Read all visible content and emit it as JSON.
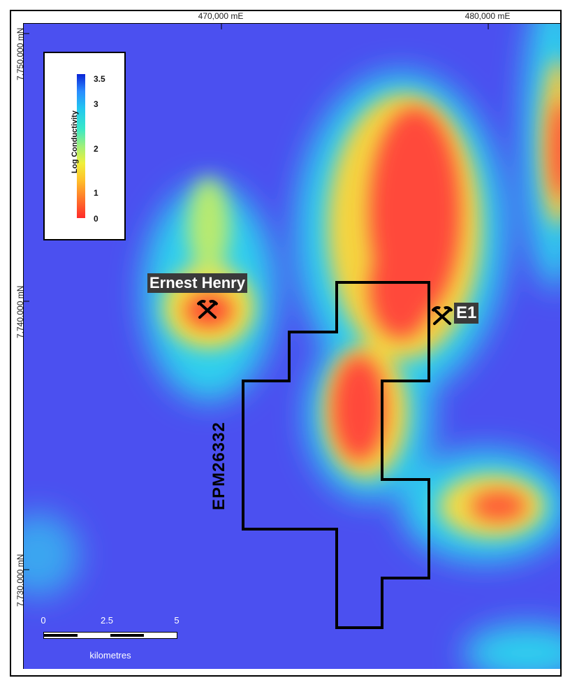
{
  "map": {
    "easting_labels": [
      "470,000 mE",
      "480,000 mE"
    ],
    "northing_labels": [
      "7,750,000 mN",
      "7,740,000 mN",
      "7,730,000 mN"
    ],
    "background_color": "#4b50f0"
  },
  "legend": {
    "title": "Log Conductivity",
    "ticks": [
      "3.5",
      "3",
      "2",
      "1",
      "0"
    ]
  },
  "features": {
    "ernest_henry": "Ernest Henry",
    "e1": "E1",
    "tenement": "EPM26332"
  },
  "scale": {
    "ticks": [
      "0",
      "2.5",
      "5"
    ],
    "unit": "kilometres"
  }
}
